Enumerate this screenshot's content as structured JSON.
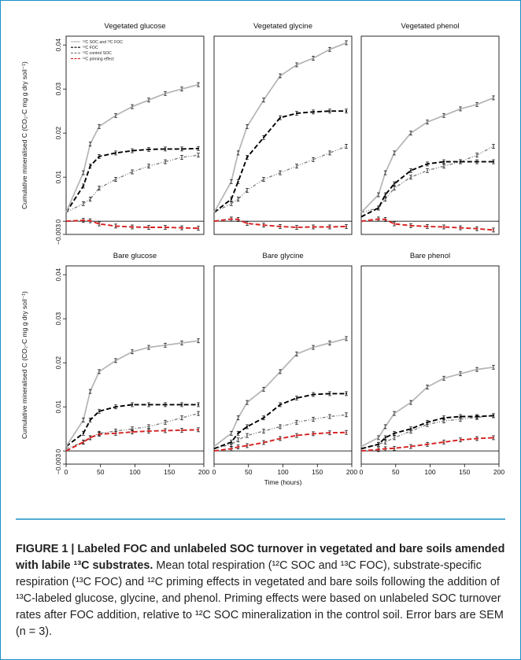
{
  "figure": {
    "caption_label": "FIGURE 1 | Labeled FOC and unlabeled SOC turnover in vegetated and bare soils amended with labile ¹³C substrates.",
    "caption_body": " Mean total respiration (¹²C SOC and ¹³C FOC), substrate-specific respiration (¹³C FOC) and ¹²C priming effects in vegetated and bare soils following the addition of ¹³C-labeled glucose, glycine, and phenol. Priming effects were based on unlabeled SOC turnover rates after FOC addition, relative to ¹²C SOC mineralization in the control soil. Error bars are SEM (n = 3)."
  },
  "chart_data": {
    "type": "line",
    "xlabel": "Time (hours)",
    "ylabel": "Cumulative mineralised C (CO₂-C mg g dry soil⁻¹)",
    "xlim": [
      0,
      200
    ],
    "ylim": [
      -0.003,
      0.042
    ],
    "x_ticks": [
      0,
      50,
      100,
      150,
      200
    ],
    "y_ticks": [
      -0.003,
      0,
      0.01,
      0.02,
      0.03,
      0.04
    ],
    "x": [
      0,
      25,
      35,
      48,
      72,
      96,
      120,
      144,
      168,
      192
    ],
    "legend": {
      "location": "top-left of first panel",
      "entries": [
        "¹²C SOC and ¹³C FOC",
        "¹³C FOC",
        "¹²C control SOC",
        "¹²C priming effect"
      ]
    },
    "series_styles": [
      {
        "color": "#b4b4b4",
        "dash": "",
        "width": 1.7
      },
      {
        "color": "#000000",
        "dash": "6 3",
        "width": 1.9
      },
      {
        "color": "#7a7a7a",
        "dash": "4 2 1 2 1 2",
        "width": 1.3
      },
      {
        "color": "#d62020",
        "dash": "6 3",
        "width": 1.9
      }
    ],
    "panels": [
      {
        "title": "Vegetated glucose",
        "series": [
          {
            "values": [
              0.002,
              0.011,
              0.0175,
              0.0215,
              0.024,
              0.026,
              0.0275,
              0.029,
              0.03,
              0.031
            ]
          },
          {
            "values": [
              0.002,
              0.008,
              0.0125,
              0.0147,
              0.0155,
              0.016,
              0.0163,
              0.0164,
              0.0164,
              0.0165
            ]
          },
          {
            "values": [
              0.002,
              0.004,
              0.005,
              0.0075,
              0.0095,
              0.0112,
              0.0125,
              0.0135,
              0.0145,
              0.015
            ]
          },
          {
            "values": [
              0.0,
              0.0002,
              0.0001,
              -0.0006,
              -0.0011,
              -0.0013,
              -0.0014,
              -0.0014,
              -0.0015,
              -0.0016
            ]
          }
        ]
      },
      {
        "title": "Vegetated glycine",
        "series": [
          {
            "values": [
              0.002,
              0.009,
              0.0155,
              0.0215,
              0.0275,
              0.033,
              0.0355,
              0.037,
              0.039,
              0.0405
            ]
          },
          {
            "values": [
              0.002,
              0.005,
              0.009,
              0.0145,
              0.019,
              0.0235,
              0.0245,
              0.0248,
              0.025,
              0.025
            ]
          },
          {
            "values": [
              0.002,
              0.004,
              0.005,
              0.007,
              0.0095,
              0.011,
              0.0125,
              0.014,
              0.0155,
              0.017
            ]
          },
          {
            "values": [
              0.0,
              0.0005,
              0.0004,
              -0.0005,
              -0.0009,
              -0.0012,
              -0.0014,
              -0.0013,
              -0.0013,
              -0.0012
            ]
          }
        ]
      },
      {
        "title": "Vegetated phenol",
        "series": [
          {
            "values": [
              0.002,
              0.006,
              0.011,
              0.0155,
              0.02,
              0.0225,
              0.024,
              0.0255,
              0.0265,
              0.028
            ]
          },
          {
            "values": [
              0.001,
              0.003,
              0.006,
              0.0085,
              0.0115,
              0.013,
              0.0135,
              0.0135,
              0.0135,
              0.0135
            ]
          },
          {
            "values": [
              0.002,
              0.003,
              0.005,
              0.0075,
              0.01,
              0.0115,
              0.0125,
              0.0135,
              0.015,
              0.017
            ]
          },
          {
            "values": [
              0.0,
              0.0005,
              0.0004,
              -0.0006,
              -0.001,
              -0.0012,
              -0.0013,
              -0.0015,
              -0.0017,
              -0.002
            ]
          }
        ]
      },
      {
        "title": "Bare glucose",
        "series": [
          {
            "values": [
              0.001,
              0.007,
              0.0135,
              0.018,
              0.0205,
              0.0225,
              0.0235,
              0.024,
              0.0245,
              0.025
            ]
          },
          {
            "values": [
              0.001,
              0.004,
              0.007,
              0.009,
              0.01,
              0.0105,
              0.0105,
              0.0105,
              0.0105,
              0.0105
            ]
          },
          {
            "values": [
              0.0005,
              0.002,
              0.003,
              0.004,
              0.0045,
              0.005,
              0.0055,
              0.0065,
              0.0075,
              0.0085
            ]
          },
          {
            "values": [
              0.0,
              0.002,
              0.003,
              0.0038,
              0.004,
              0.0043,
              0.0045,
              0.0046,
              0.0047,
              0.0048
            ]
          }
        ]
      },
      {
        "title": "Bare glycine",
        "series": [
          {
            "values": [
              0.001,
              0.004,
              0.0075,
              0.011,
              0.014,
              0.018,
              0.022,
              0.0235,
              0.0245,
              0.0255
            ]
          },
          {
            "values": [
              0.0005,
              0.002,
              0.004,
              0.0055,
              0.0075,
              0.0105,
              0.012,
              0.0128,
              0.013,
              0.013
            ]
          },
          {
            "values": [
              0.0005,
              0.0015,
              0.0025,
              0.0035,
              0.0045,
              0.0055,
              0.0065,
              0.0072,
              0.0078,
              0.0082
            ]
          },
          {
            "values": [
              0.0,
              0.0005,
              0.0009,
              0.0012,
              0.0019,
              0.0028,
              0.0035,
              0.0039,
              0.0041,
              0.0042
            ]
          }
        ]
      },
      {
        "title": "Bare phenol",
        "series": [
          {
            "values": [
              0.001,
              0.003,
              0.0055,
              0.0085,
              0.011,
              0.0145,
              0.0165,
              0.0175,
              0.0185,
              0.019
            ]
          },
          {
            "values": [
              0.0005,
              0.0015,
              0.003,
              0.004,
              0.005,
              0.0065,
              0.0075,
              0.0078,
              0.0078,
              0.008
            ]
          },
          {
            "values": [
              0.0005,
              0.0015,
              0.002,
              0.003,
              0.0045,
              0.006,
              0.0068,
              0.0072,
              0.0076,
              0.008
            ]
          },
          {
            "values": [
              0.0,
              0.0003,
              0.0005,
              0.0006,
              0.001,
              0.0015,
              0.002,
              0.0025,
              0.0028,
              0.003
            ]
          }
        ]
      }
    ]
  }
}
